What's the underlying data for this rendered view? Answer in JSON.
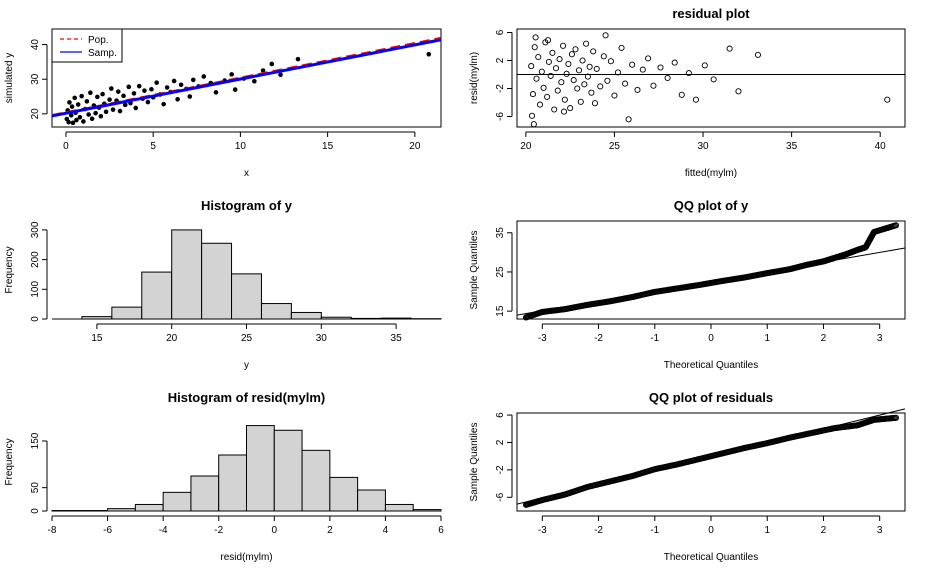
{
  "chart_data": [
    {
      "type": "scatter",
      "title": "",
      "xlabel": "x",
      "ylabel": "simulated y",
      "xlim": [
        -0.8,
        21.5
      ],
      "ylim": [
        16.2,
        44.5
      ],
      "xticks": [
        0,
        5,
        10,
        15,
        20
      ],
      "yticks": [
        20,
        30,
        40
      ],
      "legend": {
        "position": "top-left",
        "entries": [
          {
            "label": "Pop.",
            "color": "#ff0000",
            "style": "dashed"
          },
          {
            "label": "Samp.",
            "color": "#0000ff",
            "style": "solid"
          }
        ]
      },
      "lines": [
        {
          "name": "Pop.",
          "x": [
            -0.8,
            21.5
          ],
          "y": [
            19.5,
            41.8
          ],
          "color": "#ff0000",
          "dash": true
        },
        {
          "name": "Samp.",
          "x": [
            -0.8,
            21.5
          ],
          "y": [
            19.4,
            41.4
          ],
          "color": "#0000ff",
          "dash": false
        }
      ],
      "points": [
        [
          0.05,
          18.5
        ],
        [
          0.1,
          21.0
        ],
        [
          0.15,
          17.6
        ],
        [
          0.2,
          23.3
        ],
        [
          0.3,
          19.6
        ],
        [
          0.35,
          22.1
        ],
        [
          0.4,
          17.4
        ],
        [
          0.5,
          24.6
        ],
        [
          0.55,
          20.3
        ],
        [
          0.6,
          18.2
        ],
        [
          0.7,
          22.7
        ],
        [
          0.8,
          19.0
        ],
        [
          0.9,
          25.1
        ],
        [
          1.0,
          17.8
        ],
        [
          1.1,
          21.4
        ],
        [
          1.2,
          23.6
        ],
        [
          1.3,
          19.8
        ],
        [
          1.4,
          26.1
        ],
        [
          1.5,
          18.6
        ],
        [
          1.6,
          22.4
        ],
        [
          1.7,
          20.2
        ],
        [
          1.8,
          24.9
        ],
        [
          1.9,
          21.8
        ],
        [
          2.0,
          19.3
        ],
        [
          2.1,
          25.7
        ],
        [
          2.2,
          22.9
        ],
        [
          2.3,
          20.6
        ],
        [
          2.5,
          24.1
        ],
        [
          2.6,
          27.3
        ],
        [
          2.7,
          21.2
        ],
        [
          2.9,
          23.8
        ],
        [
          3.0,
          26.4
        ],
        [
          3.1,
          20.8
        ],
        [
          3.3,
          25.2
        ],
        [
          3.4,
          22.6
        ],
        [
          3.6,
          27.8
        ],
        [
          3.7,
          23.1
        ],
        [
          3.9,
          25.9
        ],
        [
          4.0,
          21.7
        ],
        [
          4.2,
          28.0
        ],
        [
          4.4,
          24.4
        ],
        [
          4.5,
          26.7
        ],
        [
          4.7,
          23.4
        ],
        [
          4.9,
          27.1
        ],
        [
          5.0,
          24.8
        ],
        [
          5.2,
          29.0
        ],
        [
          5.4,
          25.6
        ],
        [
          5.6,
          22.8
        ],
        [
          5.8,
          27.6
        ],
        [
          6.0,
          26.3
        ],
        [
          6.2,
          29.5
        ],
        [
          6.4,
          24.2
        ],
        [
          6.6,
          28.4
        ],
        [
          6.9,
          27.2
        ],
        [
          7.1,
          25.0
        ],
        [
          7.3,
          29.8
        ],
        [
          7.6,
          27.9
        ],
        [
          7.9,
          30.8
        ],
        [
          8.3,
          28.9
        ],
        [
          8.6,
          26.2
        ],
        [
          9.1,
          29.6
        ],
        [
          9.5,
          31.4
        ],
        [
          9.7,
          27.0
        ],
        [
          10.2,
          30.2
        ],
        [
          10.8,
          29.4
        ],
        [
          11.3,
          32.5
        ],
        [
          11.8,
          34.4
        ],
        [
          12.3,
          31.3
        ],
        [
          13.3,
          35.8
        ],
        [
          20.8,
          37.2
        ]
      ]
    },
    {
      "type": "scatter",
      "title": "residual plot",
      "xlabel": "fitted(mylm)",
      "ylabel": "resid(mylm)",
      "xlim": [
        19.5,
        41.4
      ],
      "ylim": [
        -7.5,
        6.5
      ],
      "xticks": [
        20,
        25,
        30,
        35,
        40
      ],
      "yticks": [
        -6,
        -2,
        2,
        6
      ],
      "hline": 0,
      "points": [
        [
          20.3,
          1.2
        ],
        [
          20.4,
          -2.8
        ],
        [
          20.5,
          3.9
        ],
        [
          20.6,
          -0.6
        ],
        [
          20.7,
          2.5
        ],
        [
          20.8,
          -4.3
        ],
        [
          20.9,
          0.4
        ],
        [
          21.0,
          -1.9
        ],
        [
          21.1,
          4.6
        ],
        [
          21.2,
          -3.2
        ],
        [
          21.3,
          1.8
        ],
        [
          21.4,
          -0.2
        ],
        [
          21.5,
          3.1
        ],
        [
          21.6,
          -5.0
        ],
        [
          21.7,
          0.9
        ],
        [
          21.8,
          -2.3
        ],
        [
          21.9,
          2.2
        ],
        [
          22.0,
          -1.1
        ],
        [
          22.1,
          4.1
        ],
        [
          22.2,
          -3.6
        ],
        [
          22.3,
          0.1
        ],
        [
          22.4,
          1.5
        ],
        [
          22.5,
          -4.8
        ],
        [
          22.6,
          2.9
        ],
        [
          22.7,
          -0.8
        ],
        [
          22.8,
          3.6
        ],
        [
          22.9,
          -2.0
        ],
        [
          23.0,
          0.6
        ],
        [
          23.1,
          -3.9
        ],
        [
          23.2,
          2.0
        ],
        [
          23.3,
          -1.4
        ],
        [
          23.4,
          4.4
        ],
        [
          23.5,
          -0.3
        ],
        [
          23.6,
          1.1
        ],
        [
          23.7,
          -2.6
        ],
        [
          23.8,
          3.3
        ],
        [
          23.9,
          -4.1
        ],
        [
          24.0,
          0.8
        ],
        [
          24.2,
          -1.7
        ],
        [
          24.4,
          2.6
        ],
        [
          24.6,
          -0.9
        ],
        [
          24.8,
          1.9
        ],
        [
          25.0,
          -3.0
        ],
        [
          25.2,
          0.3
        ],
        [
          25.4,
          3.8
        ],
        [
          25.6,
          -1.3
        ],
        [
          25.8,
          -6.4
        ],
        [
          26.0,
          1.4
        ],
        [
          26.3,
          -2.2
        ],
        [
          26.6,
          0.7
        ],
        [
          26.9,
          2.3
        ],
        [
          27.2,
          -1.6
        ],
        [
          27.6,
          1.0
        ],
        [
          28.0,
          -0.5
        ],
        [
          28.4,
          1.7
        ],
        [
          28.8,
          -2.9
        ],
        [
          29.2,
          0.2
        ],
        [
          29.6,
          -3.6
        ],
        [
          30.1,
          1.3
        ],
        [
          30.6,
          -0.7
        ],
        [
          31.5,
          3.7
        ],
        [
          32.0,
          -2.4
        ],
        [
          33.1,
          2.8
        ],
        [
          40.4,
          -3.6
        ],
        [
          20.45,
          -7.1
        ],
        [
          20.55,
          5.3
        ],
        [
          21.25,
          4.9
        ],
        [
          20.35,
          -5.9
        ],
        [
          22.15,
          -5.3
        ],
        [
          24.5,
          5.6
        ]
      ]
    },
    {
      "type": "bar",
      "title": "Histogram of y",
      "xlabel": "y",
      "ylabel": "Frequency",
      "xlim": [
        12,
        38
      ],
      "ylim": [
        0,
        330
      ],
      "xticks": [
        15,
        20,
        25,
        30,
        35
      ],
      "yticks": [
        0,
        100,
        200,
        300
      ],
      "bins": [
        [
          12,
          14,
          0
        ],
        [
          14,
          16,
          8
        ],
        [
          16,
          18,
          40
        ],
        [
          18,
          20,
          158
        ],
        [
          20,
          22,
          300
        ],
        [
          22,
          24,
          255
        ],
        [
          24,
          26,
          152
        ],
        [
          26,
          28,
          52
        ],
        [
          28,
          30,
          22
        ],
        [
          30,
          32,
          6
        ],
        [
          32,
          34,
          2
        ],
        [
          34,
          36,
          3
        ],
        [
          36,
          38,
          1
        ]
      ]
    },
    {
      "type": "scatter",
      "title": "QQ plot of y",
      "xlabel": "Theoretical Quantiles",
      "ylabel": "Sample Quantiles",
      "xlim": [
        -3.45,
        3.45
      ],
      "ylim": [
        13.0,
        38.0
      ],
      "xticks": [
        -3,
        -2,
        -1,
        0,
        1,
        2,
        3
      ],
      "yticks": [
        15,
        25,
        35
      ],
      "refline": {
        "x": [
          -3.45,
          3.45
        ],
        "y": [
          14.0,
          31.1
        ]
      },
      "curve": [
        [
          -3.29,
          13.4
        ],
        [
          -3.0,
          14.8
        ],
        [
          -2.6,
          15.5
        ],
        [
          -2.2,
          16.6
        ],
        [
          -1.8,
          17.5
        ],
        [
          -1.4,
          18.6
        ],
        [
          -1.0,
          19.9
        ],
        [
          -0.6,
          20.8
        ],
        [
          -0.2,
          21.7
        ],
        [
          0.2,
          22.7
        ],
        [
          0.6,
          23.6
        ],
        [
          1.0,
          24.7
        ],
        [
          1.4,
          25.7
        ],
        [
          1.7,
          26.8
        ],
        [
          2.0,
          27.7
        ],
        [
          2.2,
          28.6
        ],
        [
          2.4,
          29.5
        ],
        [
          2.6,
          30.6
        ],
        [
          2.75,
          31.3
        ],
        [
          2.9,
          35.2
        ],
        [
          3.29,
          36.9
        ]
      ]
    },
    {
      "type": "bar",
      "title": "Histogram of resid(mylm)",
      "xlabel": "resid(mylm)",
      "ylabel": "Frequency",
      "xlim": [
        -8,
        6
      ],
      "ylim": [
        0,
        210
      ],
      "xticks": [
        -8,
        -6,
        -4,
        -2,
        0,
        2,
        4,
        6
      ],
      "yticks": [
        0,
        50,
        150
      ],
      "bins": [
        [
          -8,
          -7,
          1
        ],
        [
          -7,
          -6,
          1
        ],
        [
          -6,
          -5,
          5
        ],
        [
          -5,
          -4,
          14
        ],
        [
          -4,
          -3,
          40
        ],
        [
          -3,
          -2,
          75
        ],
        [
          -2,
          -1,
          120
        ],
        [
          -1,
          0,
          183
        ],
        [
          0,
          1,
          173
        ],
        [
          1,
          2,
          130
        ],
        [
          2,
          3,
          72
        ],
        [
          3,
          4,
          45
        ],
        [
          4,
          5,
          14
        ],
        [
          5,
          6,
          3
        ]
      ]
    },
    {
      "type": "scatter",
      "title": "QQ plot of residuals",
      "xlabel": "Theoretical Quantiles",
      "ylabel": "Sample Quantiles",
      "xlim": [
        -3.45,
        3.45
      ],
      "ylim": [
        -8.0,
        6.3
      ],
      "xticks": [
        -3,
        -2,
        -1,
        0,
        1,
        2,
        3
      ],
      "yticks": [
        -6,
        -2,
        2,
        6
      ],
      "refline": {
        "x": [
          -3.45,
          3.45
        ],
        "y": [
          -7.0,
          6.9
        ]
      },
      "curve": [
        [
          -3.29,
          -7.1
        ],
        [
          -3.0,
          -6.4
        ],
        [
          -2.6,
          -5.6
        ],
        [
          -2.2,
          -4.5
        ],
        [
          -1.8,
          -3.7
        ],
        [
          -1.4,
          -2.9
        ],
        [
          -1.0,
          -1.9
        ],
        [
          -0.6,
          -1.2
        ],
        [
          -0.2,
          -0.4
        ],
        [
          0.2,
          0.4
        ],
        [
          0.6,
          1.2
        ],
        [
          1.0,
          1.9
        ],
        [
          1.4,
          2.7
        ],
        [
          1.8,
          3.4
        ],
        [
          2.2,
          4.1
        ],
        [
          2.6,
          4.5
        ],
        [
          2.9,
          5.3
        ],
        [
          3.29,
          5.6
        ]
      ]
    }
  ]
}
